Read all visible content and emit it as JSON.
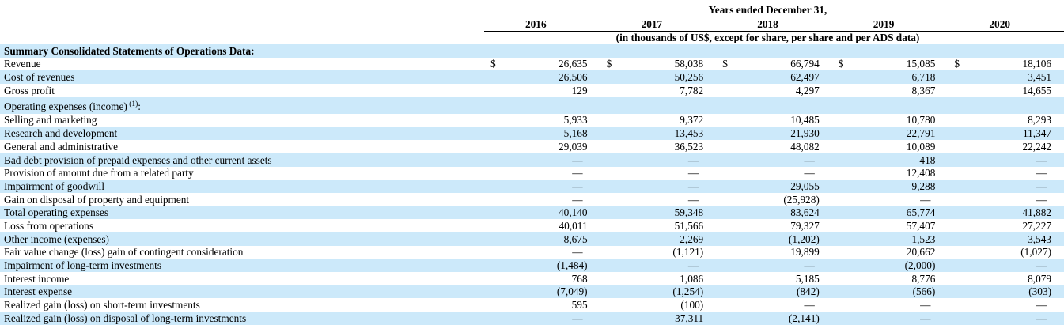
{
  "header": {
    "years_ended_label": "Years ended December 31,",
    "years": [
      "2016",
      "2017",
      "2018",
      "2019",
      "2020"
    ],
    "units_note": "(in thousands of US$, except for share, per share and per ADS data)"
  },
  "section_title": "Summary Consolidated Statements of Operations Data:",
  "table": {
    "currency_symbol": "$",
    "rows": [
      {
        "label": "Revenue",
        "show_currency": true,
        "values": [
          "26,635",
          "58,038",
          "66,794",
          "15,085",
          "18,106"
        ]
      },
      {
        "label": "Cost of revenues",
        "values": [
          "26,506",
          "50,256",
          "62,497",
          "6,718",
          "3,451"
        ]
      },
      {
        "label": "Gross profit",
        "values": [
          "129",
          "7,782",
          "4,297",
          "8,367",
          "14,655"
        ]
      },
      {
        "label": "Operating expenses (income)",
        "label_sup": "(1)",
        "label_suffix": ":",
        "values": [
          "",
          "",
          "",
          "",
          ""
        ]
      },
      {
        "label": "Selling and marketing",
        "values": [
          "5,933",
          "9,372",
          "10,485",
          "10,780",
          "8,293"
        ]
      },
      {
        "label": "Research and development",
        "values": [
          "5,168",
          "13,453",
          "21,930",
          "22,791",
          "11,347"
        ]
      },
      {
        "label": "General and administrative",
        "values": [
          "29,039",
          "36,523",
          "48,082",
          "10,089",
          "22,242"
        ]
      },
      {
        "label": "Bad debt provision of prepaid expenses and other current assets",
        "values": [
          "—",
          "—",
          "—",
          "418",
          "—"
        ]
      },
      {
        "label": "Provision of amount due from a related party",
        "values": [
          "—",
          "—",
          "—",
          "12,408",
          "—"
        ]
      },
      {
        "label": "Impairment of goodwill",
        "values": [
          "—",
          "—",
          "29,055",
          "9,288",
          "—"
        ]
      },
      {
        "label": "Gain on disposal of property and equipment",
        "values": [
          "—",
          "—",
          "(25,928)",
          "—",
          "—"
        ]
      },
      {
        "label": "Total operating expenses",
        "values": [
          "40,140",
          "59,348",
          "83,624",
          "65,774",
          "41,882"
        ]
      },
      {
        "label": "Loss from operations",
        "values": [
          "40,011",
          "51,566",
          "79,327",
          "57,407",
          "27,227"
        ]
      },
      {
        "label": "Other income (expenses)",
        "values": [
          "8,675",
          "2,269",
          "(1,202)",
          "1,523",
          "3,543"
        ]
      },
      {
        "label": "Fair value change (loss) gain of contingent consideration",
        "values": [
          "—",
          "(1,121)",
          "19,899",
          "20,662",
          "(1,027)"
        ]
      },
      {
        "label": "Impairment of long-term investments",
        "values": [
          "(1,484)",
          "—",
          "—",
          "(2,000)",
          "—"
        ]
      },
      {
        "label": "Interest income",
        "values": [
          "768",
          "1,086",
          "5,185",
          "8,776",
          "8,079"
        ]
      },
      {
        "label": "Interest expense",
        "values": [
          "(7,049)",
          "(1,254)",
          "(842)",
          "(566)",
          "(303)"
        ]
      },
      {
        "label": "Realized gain (loss) on short-term investments",
        "values": [
          "595",
          "(100)",
          "—",
          "—",
          "—"
        ]
      },
      {
        "label": "Realized gain (loss) on disposal of long-term investments",
        "values": [
          "—",
          "37,311",
          "(2,141)",
          "—",
          "—"
        ]
      }
    ]
  },
  "colors": {
    "row_highlight": "#cce9fa",
    "rule": "#000000",
    "text": "#000000"
  }
}
